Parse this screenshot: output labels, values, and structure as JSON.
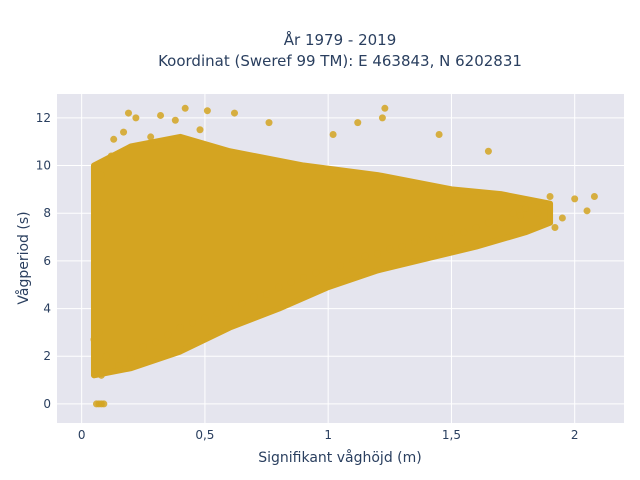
{
  "chart_data": {
    "type": "scatter",
    "title_lines": [
      "År 1979 - 2019",
      "Koordinat (Sweref 99 TM): E 463843, N 6202831"
    ],
    "xlabel": "Signifikant våghöjd (m)",
    "ylabel": "Vågperiod (s)",
    "xlim": [
      -0.1,
      2.2
    ],
    "ylim": [
      -0.8,
      13
    ],
    "x_ticks": [
      0,
      0.5,
      1,
      1.5,
      2
    ],
    "x_tick_labels": [
      "0",
      "0,5",
      "1",
      "1,5",
      "2"
    ],
    "y_ticks": [
      0,
      2,
      4,
      6,
      8,
      10,
      12
    ],
    "y_tick_labels": [
      "0",
      "2",
      "4",
      "6",
      "8",
      "10",
      "12"
    ],
    "grid": true,
    "marker_color": "#D4A421",
    "plot_bg": "#E5E5EE",
    "points": [
      [
        0.05,
        2.7
      ],
      [
        0.06,
        1.4
      ],
      [
        0.07,
        3.0
      ],
      [
        0.08,
        1.2
      ],
      [
        0.08,
        9.6
      ],
      [
        0.09,
        8.4
      ],
      [
        0.1,
        2.0
      ],
      [
        0.12,
        10.4
      ],
      [
        0.13,
        11.1
      ],
      [
        0.15,
        1.6
      ],
      [
        0.17,
        11.4
      ],
      [
        0.18,
        1.5
      ],
      [
        0.19,
        12.2
      ],
      [
        0.2,
        1.9
      ],
      [
        0.22,
        12.0
      ],
      [
        0.25,
        2.4
      ],
      [
        0.28,
        11.2
      ],
      [
        0.3,
        2.6
      ],
      [
        0.32,
        12.1
      ],
      [
        0.35,
        2.9
      ],
      [
        0.38,
        11.9
      ],
      [
        0.4,
        3.2
      ],
      [
        0.42,
        12.4
      ],
      [
        0.45,
        3.4
      ],
      [
        0.48,
        11.5
      ],
      [
        0.5,
        3.6
      ],
      [
        0.51,
        12.3
      ],
      [
        0.55,
        3.8
      ],
      [
        0.6,
        4.0
      ],
      [
        0.62,
        12.2
      ],
      [
        0.65,
        4.2
      ],
      [
        0.7,
        4.5
      ],
      [
        0.75,
        4.6
      ],
      [
        0.76,
        11.8
      ],
      [
        0.8,
        4.9
      ],
      [
        0.85,
        5.1
      ],
      [
        0.9,
        5.3
      ],
      [
        0.95,
        5.5
      ],
      [
        1.0,
        5.6
      ],
      [
        1.02,
        11.3
      ],
      [
        1.05,
        5.8
      ],
      [
        1.1,
        6.0
      ],
      [
        1.12,
        11.8
      ],
      [
        1.15,
        6.2
      ],
      [
        1.2,
        6.3
      ],
      [
        1.22,
        12.0
      ],
      [
        1.23,
        12.4
      ],
      [
        1.25,
        6.5
      ],
      [
        1.3,
        6.6
      ],
      [
        1.35,
        6.8
      ],
      [
        1.4,
        6.9
      ],
      [
        1.45,
        7.0
      ],
      [
        1.45,
        11.3
      ],
      [
        1.5,
        7.2
      ],
      [
        1.55,
        7.2
      ],
      [
        1.6,
        7.4
      ],
      [
        1.65,
        7.6
      ],
      [
        1.65,
        10.6
      ],
      [
        1.7,
        7.6
      ],
      [
        1.75,
        8.0
      ],
      [
        1.8,
        8.2
      ],
      [
        1.85,
        8.0
      ],
      [
        1.9,
        8.7
      ],
      [
        1.95,
        7.8
      ],
      [
        2.0,
        8.6
      ],
      [
        2.05,
        8.1
      ],
      [
        2.08,
        8.7
      ],
      [
        1.92,
        7.4
      ],
      [
        1.78,
        7.9
      ],
      [
        1.88,
        8.3
      ]
    ],
    "density_regions": [
      {
        "type": "band",
        "x_start": 0.05,
        "x_end": 1.9,
        "upper": [
          [
            0.05,
            10.0
          ],
          [
            0.2,
            10.8
          ],
          [
            0.4,
            11.2
          ],
          [
            0.6,
            10.6
          ],
          [
            0.9,
            10.0
          ],
          [
            1.2,
            9.6
          ],
          [
            1.5,
            9.0
          ],
          [
            1.7,
            8.8
          ],
          [
            1.9,
            8.4
          ]
        ],
        "lower": [
          [
            0.05,
            1.2
          ],
          [
            0.2,
            1.5
          ],
          [
            0.4,
            2.2
          ],
          [
            0.6,
            3.2
          ],
          [
            0.8,
            4.0
          ],
          [
            1.0,
            4.9
          ],
          [
            1.2,
            5.6
          ],
          [
            1.4,
            6.1
          ],
          [
            1.6,
            6.6
          ],
          [
            1.8,
            7.2
          ],
          [
            1.9,
            7.6
          ]
        ]
      }
    ],
    "zero_points": [
      [
        0.06,
        0
      ],
      [
        0.07,
        0
      ],
      [
        0.08,
        0
      ],
      [
        0.09,
        0
      ]
    ]
  }
}
